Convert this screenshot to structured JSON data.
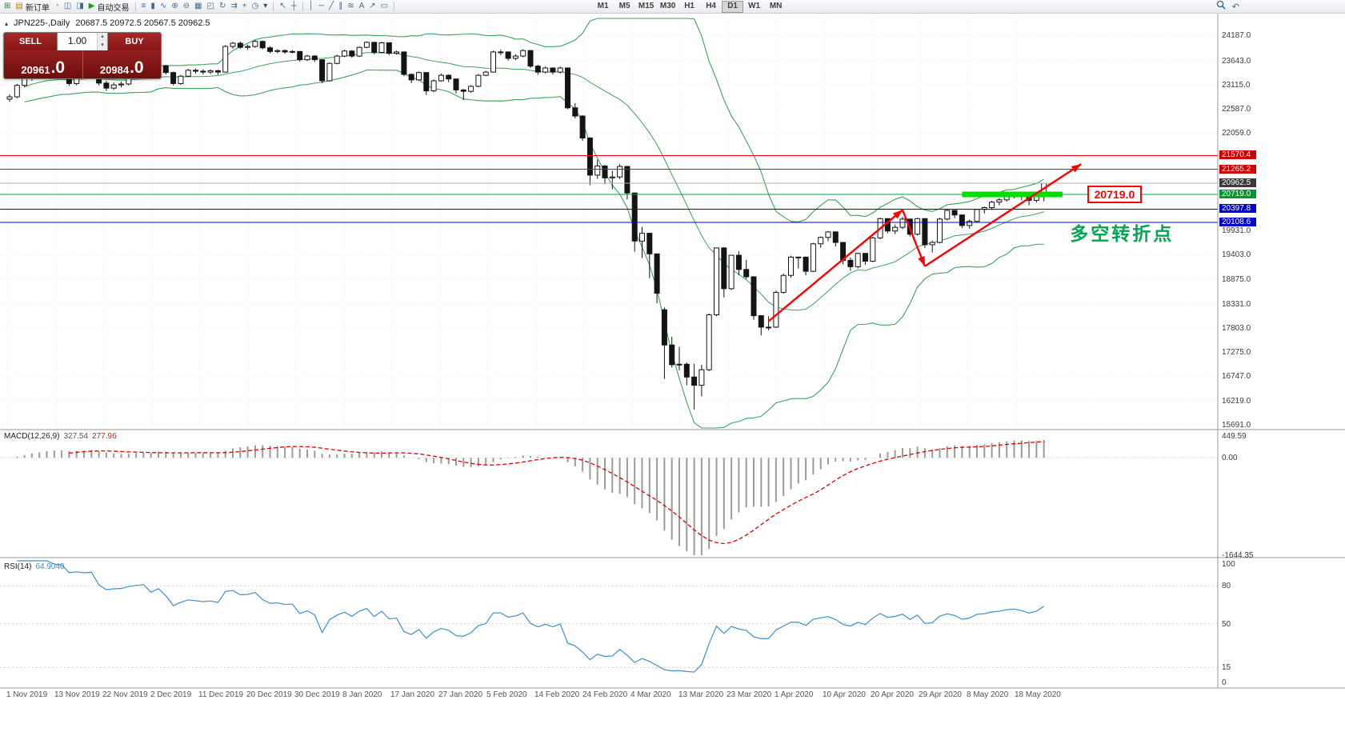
{
  "icons": {
    "collapse": "▴",
    "spinner_up": "▴",
    "spinner_down": "▾"
  },
  "toolbar": {
    "groups": [
      {
        "items": [
          {
            "name": "new-chart-icon",
            "glyph": "⊞",
            "color": "#2e7d32"
          },
          {
            "name": "new-order-button",
            "glyph": "▤",
            "color": "#b8860b",
            "label": "新订单"
          },
          {
            "name": "alerts-icon",
            "glyph": "◔",
            "color": "#c79100"
          },
          {
            "name": "market-watch-icon",
            "glyph": "◫"
          },
          {
            "name": "terminal-window-icon",
            "glyph": "◨"
          },
          {
            "name": "autotrading-button",
            "glyph": "▶",
            "color": "#18a018",
            "label": "自动交易"
          }
        ]
      },
      {
        "items": [
          {
            "name": "bars-chart-icon",
            "glyph": "≡"
          },
          {
            "name": "candlestick-chart-icon",
            "glyph": "▮"
          },
          {
            "name": "line-chart-icon",
            "glyph": "∿"
          },
          {
            "name": "zoom-in-icon",
            "glyph": "⊕"
          },
          {
            "name": "zoom-out-icon",
            "glyph": "⊖"
          },
          {
            "name": "tile-windows-icon",
            "glyph": "▦"
          },
          {
            "name": "cascade-windows-icon",
            "glyph": "◰"
          },
          {
            "name": "auto-scroll-icon",
            "glyph": "↻"
          },
          {
            "name": "chart-shift-icon",
            "glyph": "⇉"
          },
          {
            "name": "add-indicator-icon",
            "glyph": "+",
            "color": "#18a018"
          },
          {
            "name": "periods-icon",
            "glyph": "◷"
          },
          {
            "name": "templates-icon",
            "glyph": "▾",
            "color": "#444"
          }
        ]
      },
      {
        "items": [
          {
            "name": "cursor-icon",
            "glyph": "↖"
          },
          {
            "name": "crosshair-icon",
            "glyph": "┼"
          }
        ]
      },
      {
        "items": [
          {
            "name": "vertical-line-icon",
            "glyph": "│"
          },
          {
            "name": "horizontal-line-icon",
            "glyph": "─"
          },
          {
            "name": "trendline-icon",
            "glyph": "╱"
          },
          {
            "name": "channel-icon",
            "glyph": "∥"
          },
          {
            "name": "fibonacci-icon",
            "glyph": "≋"
          },
          {
            "name": "text-label-icon",
            "glyph": "A"
          },
          {
            "name": "arrows-object-icon",
            "glyph": "↗"
          },
          {
            "name": "shapes-icon",
            "glyph": "▭"
          }
        ]
      },
      {
        "type": "timeframes",
        "labels": [
          "M1",
          "M5",
          "M15",
          "M30",
          "H1",
          "H4",
          "D1",
          "W1",
          "MN"
        ],
        "active": "D1"
      }
    ]
  },
  "header": {
    "symbol_period": "JPN225-,Daily",
    "ohlc": "20687.5 20972.5 20567.5 20962.5"
  },
  "quote_panel": {
    "sell_label": "SELL",
    "buy_label": "BUY",
    "volume": "1.00",
    "sell_price": {
      "main": "20961",
      "big": ".0"
    },
    "buy_price": {
      "main": "20984",
      "big": ".0"
    }
  },
  "chart_data": {
    "type": "candlestick",
    "symbol": "JPN225-",
    "timeframe": "Daily",
    "ohlc_current": {
      "open": 20687.5,
      "high": 20972.5,
      "low": 20567.5,
      "close": 20962.5
    },
    "colors": {
      "bollinger": "#3aa35c",
      "up_candle": "#ffffff",
      "down_candle": "#141414",
      "candle_border": "#141414",
      "macd_hist": "#9b9b9b",
      "macd_signal": "#dd0000",
      "rsi": "#3d8fd1",
      "arrow": "#ff0000",
      "note_green": "#00a651",
      "support_bar_green": "#00dd00"
    },
    "x_labels": [
      "1 Nov 2019",
      "13 Nov 2019",
      "22 Nov 2019",
      "2 Dec 2019",
      "11 Dec 2019",
      "20 Dec 2019",
      "30 Dec 2019",
      "8 Jan 2020",
      "17 Jan 2020",
      "27 Jan 2020",
      "5 Feb 2020",
      "14 Feb 2020",
      "24 Feb 2020",
      "4 Mar 2020",
      "13 Mar 2020",
      "23 Mar 2020",
      "1 Apr 2020",
      "10 Apr 2020",
      "20 Apr 2020",
      "29 Apr 2020",
      "8 May 2020",
      "18 May 2020"
    ],
    "y_axis": {
      "range": [
        15600,
        24580
      ],
      "labels": [
        "24187.0",
        "23643.0",
        "23115.0",
        "22587.0",
        "22059.0",
        "19931.0",
        "19403.0",
        "18875.0",
        "18331.0",
        "17803.0",
        "17275.0",
        "16747.0",
        "16219.0",
        "15691.0"
      ],
      "unlabeled": [
        21531,
        21003,
        20475
      ]
    },
    "levels": [
      {
        "label": "21570.4",
        "price": 21570.4,
        "line": "#ee0000",
        "tag_bg": "#cc0000"
      },
      {
        "label": "21265.2",
        "price": 21265.2,
        "line": "#ee0000",
        "tag_bg": "#cc0000"
      },
      {
        "label": "20962.5",
        "price": 20962.5,
        "line": "#b0b0b0",
        "tag_bg": "#3b3b3b"
      },
      {
        "label": "20719.0",
        "price": 20719.0,
        "line": "#00a43c",
        "tag_bg": "#00992e"
      },
      {
        "label": "20397.8",
        "price": 20397.8,
        "line": "#0000dd",
        "tag_bg": "#0000cc"
      },
      {
        "label": "20108.6",
        "price": 20108.6,
        "line": "#0000dd",
        "tag_bg": "#0000cc"
      }
    ],
    "indicators": {
      "bollinger": {
        "period": 20,
        "deviation": 2
      },
      "macd": {
        "name": "MACD(12,26,9)",
        "value1": "327.54",
        "value2": "277.96",
        "axis": [
          "449.59",
          "0.00",
          "-1644.35"
        ]
      },
      "rsi": {
        "name": "RSI(14)",
        "value": "64.9040",
        "axis": [
          "100",
          "80",
          "50",
          "15",
          "0"
        ],
        "level_lines": [
          80,
          50,
          15
        ]
      }
    },
    "annotations": {
      "trend_arrows": [
        {
          "from_i": 102,
          "from_price": 17950,
          "to_i": 120,
          "to_price": 20380
        },
        {
          "from_i": 120,
          "from_price": 20380,
          "to_i": 123,
          "to_price": 19150
        },
        {
          "from_i": 123,
          "from_price": 19150,
          "to_i": 144,
          "to_price": 21380
        }
      ],
      "support_bar": {
        "from_i": 128,
        "to_i": 141.5,
        "price": 20719.0,
        "color": "#00dd00"
      },
      "price_callout": {
        "text": "20719.0",
        "i": 144.8,
        "price": 20719.0
      },
      "note": {
        "text": "多空转折点",
        "i": 142.5,
        "price": 19950
      }
    },
    "candles": [
      [
        22800,
        22900,
        22740,
        22850
      ],
      [
        22850,
        23130,
        22820,
        23100
      ],
      [
        23100,
        23290,
        23060,
        23250
      ],
      [
        23250,
        23350,
        23200,
        23300
      ],
      [
        23300,
        23380,
        23250,
        23330
      ],
      [
        23330,
        23440,
        23300,
        23390
      ],
      [
        23390,
        23420,
        23270,
        23320
      ],
      [
        23320,
        23360,
        23250,
        23300
      ],
      [
        23300,
        23330,
        23090,
        23140
      ],
      [
        23140,
        23360,
        23100,
        23320
      ],
      [
        23320,
        23370,
        23250,
        23300
      ],
      [
        23300,
        23450,
        23270,
        23420
      ],
      [
        23420,
        23440,
        23100,
        23150
      ],
      [
        23150,
        23200,
        22980,
        23040
      ],
      [
        23040,
        23160,
        23000,
        23110
      ],
      [
        23110,
        23180,
        23060,
        23130
      ],
      [
        23130,
        23320,
        23100,
        23290
      ],
      [
        23290,
        23410,
        23260,
        23370
      ],
      [
        23370,
        23480,
        23330,
        23440
      ],
      [
        23440,
        23460,
        23250,
        23290
      ],
      [
        23290,
        23560,
        23260,
        23530
      ],
      [
        23530,
        23550,
        23340,
        23380
      ],
      [
        23380,
        23400,
        23100,
        23140
      ],
      [
        23140,
        23330,
        23110,
        23300
      ],
      [
        23300,
        23460,
        23280,
        23430
      ],
      [
        23430,
        23470,
        23360,
        23410
      ],
      [
        23410,
        23450,
        23340,
        23390
      ],
      [
        23390,
        23450,
        23350,
        23420
      ],
      [
        23420,
        23440,
        23330,
        23390
      ],
      [
        23390,
        23980,
        23380,
        23950
      ],
      [
        23950,
        24050,
        23900,
        24020
      ],
      [
        24020,
        24060,
        23900,
        23930
      ],
      [
        23930,
        23990,
        23880,
        23950
      ],
      [
        23950,
        24090,
        23920,
        24060
      ],
      [
        24060,
        24080,
        23890,
        23920
      ],
      [
        23920,
        23950,
        23800,
        23840
      ],
      [
        23840,
        23890,
        23800,
        23860
      ],
      [
        23860,
        23880,
        23790,
        23830
      ],
      [
        23830,
        23870,
        23800,
        23840
      ],
      [
        23840,
        23850,
        23620,
        23660
      ],
      [
        23660,
        23770,
        23630,
        23740
      ],
      [
        23740,
        23760,
        23610,
        23660
      ],
      [
        23660,
        23670,
        23150,
        23200
      ],
      [
        23200,
        23600,
        23180,
        23580
      ],
      [
        23580,
        23770,
        23560,
        23740
      ],
      [
        23740,
        23880,
        23720,
        23850
      ],
      [
        23850,
        23870,
        23700,
        23740
      ],
      [
        23740,
        23950,
        23720,
        23930
      ],
      [
        23930,
        24060,
        23910,
        24040
      ],
      [
        24040,
        24050,
        23780,
        23820
      ],
      [
        23820,
        24050,
        23800,
        24030
      ],
      [
        24030,
        24040,
        23760,
        23800
      ],
      [
        23800,
        23860,
        23770,
        23830
      ],
      [
        23830,
        23840,
        23300,
        23340
      ],
      [
        23340,
        23360,
        23150,
        23220
      ],
      [
        23220,
        23400,
        23200,
        23380
      ],
      [
        23380,
        23390,
        22890,
        22980
      ],
      [
        22980,
        23230,
        22950,
        23200
      ],
      [
        23200,
        23360,
        23180,
        23320
      ],
      [
        23320,
        23340,
        23170,
        23240
      ],
      [
        23240,
        23250,
        22920,
        23000
      ],
      [
        23000,
        23020,
        22780,
        22970
      ],
      [
        22970,
        23100,
        22940,
        23080
      ],
      [
        23080,
        23350,
        23060,
        23320
      ],
      [
        23320,
        23420,
        23300,
        23390
      ],
      [
        23390,
        23860,
        23380,
        23830
      ],
      [
        23830,
        23880,
        23760,
        23830
      ],
      [
        23830,
        23840,
        23640,
        23690
      ],
      [
        23690,
        23780,
        23650,
        23740
      ],
      [
        23740,
        23890,
        23710,
        23860
      ],
      [
        23860,
        23870,
        23480,
        23520
      ],
      [
        23520,
        23550,
        23330,
        23390
      ],
      [
        23390,
        23510,
        23360,
        23480
      ],
      [
        23480,
        23490,
        23340,
        23390
      ],
      [
        23390,
        23510,
        23360,
        23480
      ],
      [
        23480,
        23490,
        22580,
        22610
      ],
      [
        22610,
        22710,
        22380,
        22430
      ],
      [
        22430,
        22450,
        21890,
        21950
      ],
      [
        21950,
        21970,
        20920,
        21140
      ],
      [
        21140,
        21480,
        21060,
        21340
      ],
      [
        21340,
        21360,
        20940,
        21080
      ],
      [
        21080,
        21240,
        20830,
        21100
      ],
      [
        21100,
        21380,
        21050,
        21330
      ],
      [
        21330,
        21340,
        20610,
        20750
      ],
      [
        20750,
        20760,
        19470,
        19700
      ],
      [
        19700,
        20010,
        19330,
        19870
      ],
      [
        19870,
        19880,
        18890,
        19420
      ],
      [
        19420,
        19430,
        18340,
        18560
      ],
      [
        18200,
        18250,
        16690,
        17430
      ],
      [
        17430,
        17610,
        16940,
        17000
      ],
      [
        17000,
        17390,
        16880,
        17010
      ],
      [
        17010,
        17050,
        16550,
        16730
      ],
      [
        16730,
        17020,
        16020,
        16550
      ],
      [
        16550,
        17000,
        16310,
        16890
      ],
      [
        16890,
        18120,
        16860,
        18090
      ],
      [
        18090,
        19560,
        18060,
        19550
      ],
      [
        19550,
        19570,
        18470,
        18660
      ],
      [
        18660,
        19400,
        18630,
        19390
      ],
      [
        19390,
        19480,
        18950,
        19080
      ],
      [
        19080,
        19290,
        18870,
        18920
      ],
      [
        18920,
        18930,
        17980,
        18070
      ],
      [
        18070,
        18080,
        17640,
        17820
      ],
      [
        17820,
        18060,
        17750,
        17820
      ],
      [
        17820,
        18620,
        17800,
        18580
      ],
      [
        18580,
        18990,
        18550,
        18950
      ],
      [
        18950,
        19380,
        18900,
        19350
      ],
      [
        19350,
        19360,
        19100,
        19350
      ],
      [
        19350,
        19360,
        18950,
        19040
      ],
      [
        19040,
        19660,
        19020,
        19640
      ],
      [
        19640,
        19800,
        19550,
        19780
      ],
      [
        19780,
        19920,
        19700,
        19900
      ],
      [
        19900,
        19910,
        19580,
        19670
      ],
      [
        19670,
        19680,
        19190,
        19280
      ],
      [
        19280,
        19340,
        19050,
        19140
      ],
      [
        19140,
        19450,
        19100,
        19430
      ],
      [
        19430,
        19440,
        19180,
        19260
      ],
      [
        19260,
        19790,
        19240,
        19770
      ],
      [
        19770,
        20210,
        19740,
        20190
      ],
      [
        20190,
        20200,
        19870,
        19920
      ],
      [
        19920,
        20060,
        19850,
        20000
      ],
      [
        20000,
        20230,
        19960,
        20180
      ],
      [
        20180,
        20190,
        19800,
        19850
      ],
      [
        19850,
        20210,
        19820,
        20190
      ],
      [
        20190,
        20200,
        19550,
        19620
      ],
      [
        19620,
        19710,
        19450,
        19670
      ],
      [
        19670,
        20210,
        19650,
        20180
      ],
      [
        20180,
        20390,
        20150,
        20370
      ],
      [
        20370,
        20380,
        20200,
        20270
      ],
      [
        20270,
        20280,
        19980,
        20040
      ],
      [
        20040,
        20170,
        19970,
        20130
      ],
      [
        20130,
        20400,
        20100,
        20390
      ],
      [
        20390,
        20450,
        20300,
        20430
      ],
      [
        20430,
        20580,
        20380,
        20550
      ],
      [
        20550,
        20640,
        20480,
        20600
      ],
      [
        20600,
        20740,
        20560,
        20700
      ],
      [
        20700,
        20780,
        20630,
        20740
      ],
      [
        20740,
        20750,
        20590,
        20680
      ],
      [
        20680,
        20690,
        20480,
        20590
      ],
      [
        20590,
        20720,
        20540,
        20690
      ],
      [
        20687.5,
        20972.5,
        20567.5,
        20962.5
      ]
    ]
  }
}
